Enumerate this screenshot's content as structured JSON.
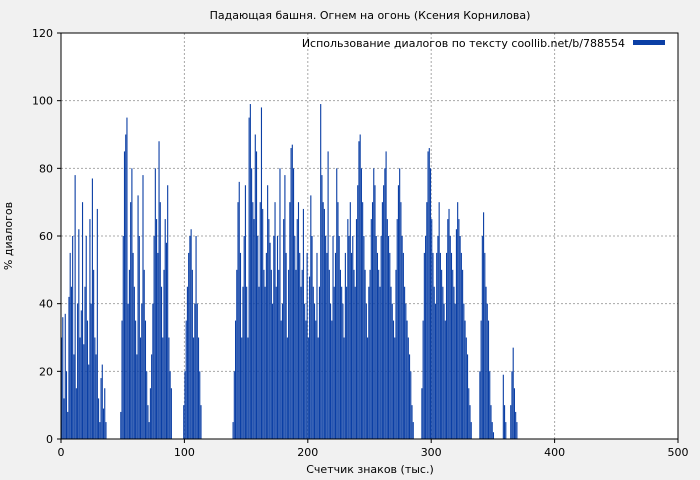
{
  "chart_data": {
    "type": "bar",
    "title": "Падающая башня. Огнем на огонь (Ксения Корнилова)",
    "xlabel": "Счетчик знаков (тыс.)",
    "ylabel": "% диалогов",
    "xlim": [
      0,
      500
    ],
    "ylim": [
      0,
      120
    ],
    "xticks": [
      0,
      100,
      200,
      300,
      400,
      500
    ],
    "yticks": [
      0,
      20,
      40,
      60,
      80,
      100,
      120
    ],
    "grid": true,
    "legend_position": "top-right",
    "series": [
      {
        "name": "Использование диалогов по тексту coollib.net/b/788554",
        "color": "#0b3fa5",
        "x_step": 1,
        "values": [
          30,
          36,
          12,
          37,
          20,
          8,
          42,
          55,
          45,
          60,
          25,
          78,
          15,
          40,
          62,
          30,
          38,
          70,
          28,
          45,
          60,
          35,
          22,
          65,
          40,
          77,
          50,
          30,
          25,
          68,
          12,
          5,
          18,
          22,
          9,
          15,
          5,
          0,
          0,
          0,
          0,
          0,
          0,
          0,
          0,
          0,
          0,
          0,
          8,
          35,
          60,
          85,
          90,
          95,
          40,
          50,
          70,
          80,
          55,
          45,
          35,
          25,
          72,
          60,
          30,
          40,
          78,
          50,
          35,
          20,
          10,
          5,
          15,
          25,
          40,
          60,
          80,
          65,
          55,
          88,
          70,
          45,
          30,
          50,
          65,
          58,
          75,
          30,
          20,
          15,
          0,
          0,
          0,
          0,
          0,
          0,
          0,
          0,
          0,
          10,
          20,
          35,
          45,
          55,
          60,
          62,
          50,
          30,
          40,
          60,
          40,
          30,
          20,
          10,
          0,
          0,
          0,
          0,
          0,
          0,
          0,
          0,
          0,
          0,
          0,
          0,
          0,
          0,
          0,
          0,
          0,
          0,
          0,
          0,
          0,
          0,
          0,
          0,
          0,
          5,
          20,
          35,
          50,
          70,
          76,
          55,
          30,
          45,
          60,
          75,
          45,
          30,
          95,
          99,
          80,
          70,
          65,
          90,
          85,
          60,
          45,
          70,
          98,
          68,
          50,
          45,
          55,
          75,
          65,
          58,
          50,
          40,
          60,
          70,
          45,
          60,
          50,
          80,
          35,
          40,
          65,
          78,
          55,
          30,
          50,
          70,
          86,
          87,
          80,
          60,
          50,
          65,
          70,
          55,
          45,
          50,
          68,
          40,
          35,
          55,
          30,
          48,
          72,
          60,
          45,
          40,
          35,
          55,
          30,
          45,
          99,
          78,
          70,
          68,
          60,
          55,
          85,
          50,
          40,
          35,
          60,
          45,
          55,
          80,
          70,
          60,
          50,
          45,
          40,
          30,
          55,
          45,
          65,
          60,
          70,
          55,
          60,
          50,
          45,
          65,
          75,
          88,
          90,
          80,
          70,
          60,
          50,
          40,
          30,
          45,
          50,
          65,
          70,
          80,
          75,
          60,
          55,
          50,
          45,
          60,
          70,
          75,
          80,
          85,
          65,
          60,
          55,
          45,
          40,
          35,
          30,
          50,
          65,
          75,
          80,
          70,
          60,
          55,
          45,
          40,
          35,
          30,
          25,
          20,
          10,
          5,
          0,
          0,
          0,
          0,
          0,
          0,
          15,
          35,
          55,
          60,
          70,
          85,
          86,
          80,
          65,
          55,
          45,
          40,
          55,
          60,
          70,
          55,
          50,
          45,
          40,
          35,
          55,
          65,
          68,
          60,
          55,
          50,
          45,
          40,
          62,
          70,
          65,
          60,
          55,
          50,
          40,
          35,
          30,
          25,
          15,
          10,
          5,
          0,
          0,
          0,
          0,
          0,
          0,
          20,
          35,
          60,
          67,
          55,
          45,
          40,
          35,
          20,
          10,
          5,
          2,
          0,
          0,
          0,
          0,
          0,
          0,
          0,
          19,
          10,
          5,
          0,
          0,
          0,
          10,
          20,
          27,
          15,
          8,
          5,
          0,
          0,
          0,
          0,
          0,
          0,
          0,
          0,
          0,
          0,
          0,
          0,
          0,
          0,
          0,
          0,
          0,
          0,
          0,
          0,
          0,
          0,
          0,
          0,
          0,
          0,
          0,
          0,
          0,
          0,
          0,
          0,
          0,
          0,
          0,
          0,
          0,
          0,
          0,
          0,
          0,
          0,
          0,
          0,
          0,
          0,
          0,
          0,
          0,
          0,
          0,
          0,
          0,
          0,
          0,
          0,
          0,
          0,
          0,
          0,
          0,
          0,
          0,
          0,
          0,
          0,
          0,
          0,
          0,
          0,
          0,
          0,
          0,
          0,
          0,
          0,
          0,
          0,
          0,
          0,
          0,
          0,
          0,
          0,
          0,
          0,
          0,
          0,
          0,
          0,
          0,
          0,
          0,
          0,
          0,
          0,
          0,
          0,
          0,
          0,
          0,
          0,
          0,
          0,
          0,
          0,
          0,
          0,
          0,
          0,
          0,
          0,
          0,
          0,
          0,
          0
        ]
      }
    ]
  }
}
